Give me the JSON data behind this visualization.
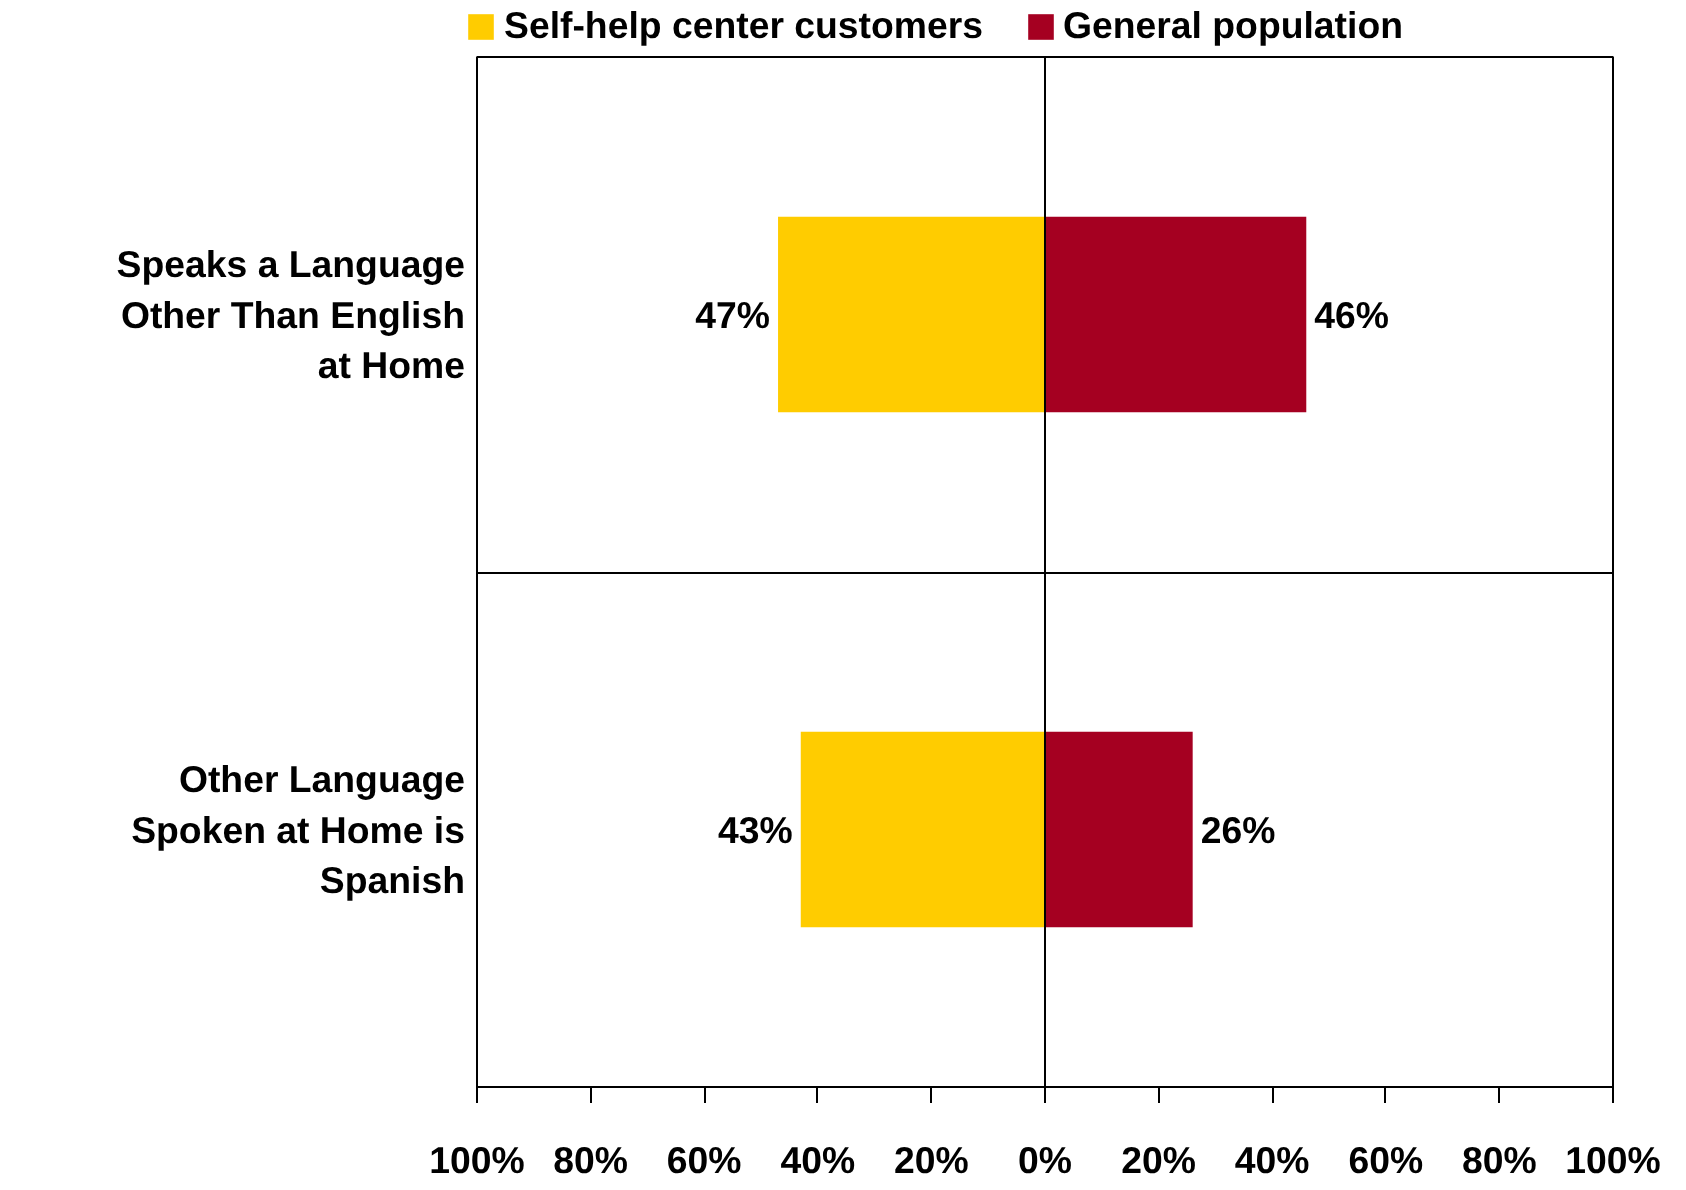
{
  "chart_data": {
    "type": "bar",
    "orientation": "horizontal",
    "categories": [
      "Speaks a Language\nOther Than English\nat Home",
      "Other Language\nSpoken at Home is\nSpanish"
    ],
    "series": [
      {
        "name": "Self-help center customers",
        "color": "#ffcc00",
        "values": [
          47,
          43
        ],
        "base": [
          -47,
          -43
        ],
        "value_labels": [
          "47%",
          "43%"
        ]
      },
      {
        "name": "General population",
        "color": "#a50021",
        "values": [
          46,
          26
        ],
        "value_labels": [
          "46%",
          "26%"
        ]
      }
    ],
    "xlim": [
      -100,
      100
    ],
    "xticks": [
      {
        "value": -100,
        "label": "100%"
      },
      {
        "value": -80,
        "label": "80%"
      },
      {
        "value": -60,
        "label": "60%"
      },
      {
        "value": -40,
        "label": "40%"
      },
      {
        "value": -20,
        "label": "20%"
      },
      {
        "value": 0,
        "label": "0%"
      },
      {
        "value": 20,
        "label": "20%"
      },
      {
        "value": 40,
        "label": "40%"
      },
      {
        "value": 60,
        "label": "60%"
      },
      {
        "value": 80,
        "label": "80%"
      },
      {
        "value": 100,
        "label": "100%"
      }
    ],
    "ref_lines": [
      {
        "axis": "x",
        "value": 0
      }
    ],
    "grid": false,
    "legend": "top"
  }
}
